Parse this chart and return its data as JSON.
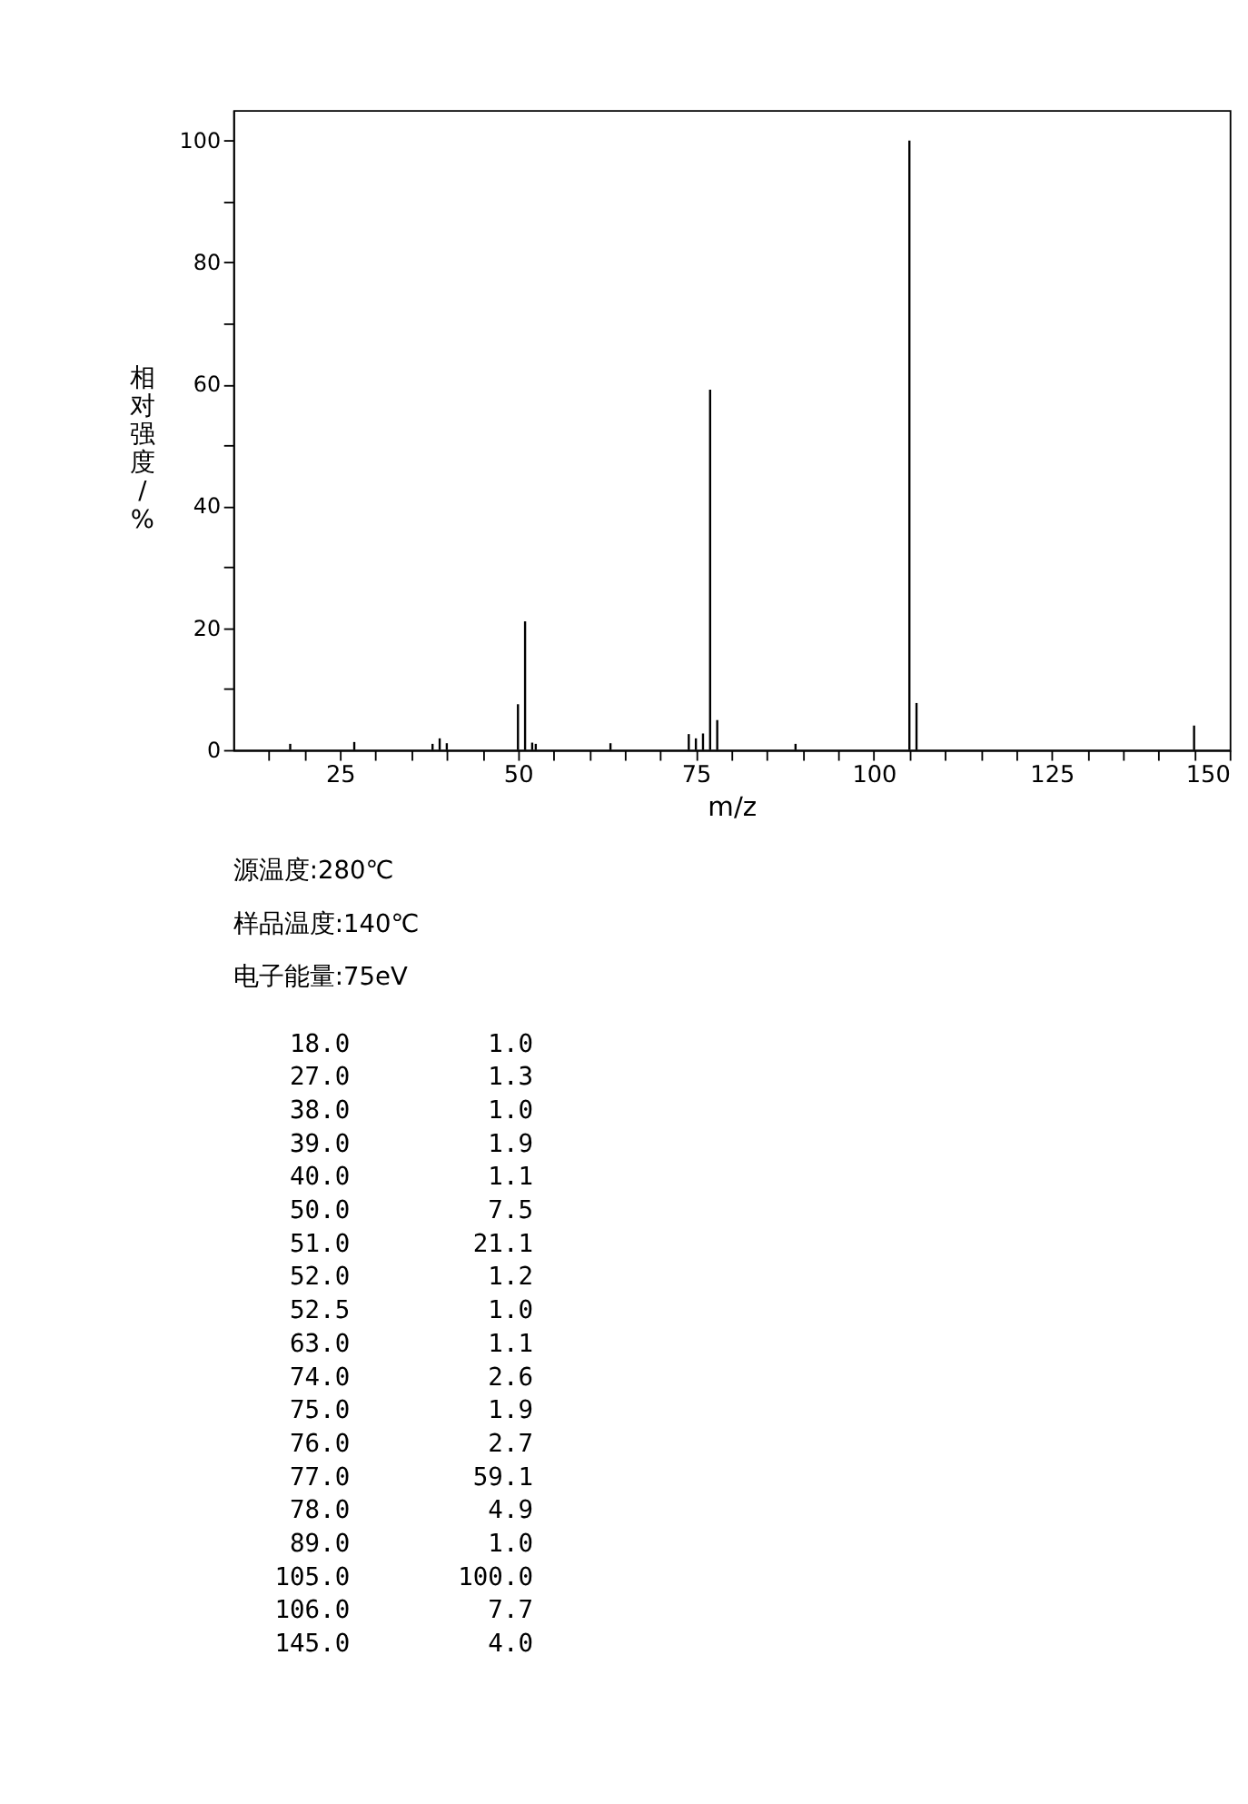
{
  "chart_data": [
    {
      "type": "bar",
      "xlabel": "m/z",
      "ylabel": "相对强度/%",
      "x": [
        18.0,
        27.0,
        38.0,
        39.0,
        40.0,
        50.0,
        51.0,
        52.0,
        52.5,
        63.0,
        74.0,
        75.0,
        76.0,
        77.0,
        78.0,
        89.0,
        105.0,
        106.0,
        145.0
      ],
      "values": [
        1.0,
        1.3,
        1.0,
        1.9,
        1.1,
        7.5,
        21.1,
        1.2,
        1.0,
        1.1,
        2.6,
        1.9,
        2.7,
        59.1,
        4.9,
        1.0,
        100.0,
        7.7,
        4.0
      ],
      "color": "#000000",
      "xlim": [
        10,
        150
      ],
      "xticks": [
        {
          "value": 15,
          "label": null
        },
        {
          "value": 20,
          "label": null
        },
        25,
        {
          "value": 30,
          "label": null
        },
        {
          "value": 35,
          "label": null
        },
        {
          "value": 40,
          "label": null
        },
        {
          "value": 45,
          "label": null
        },
        50,
        {
          "value": 55,
          "label": null
        },
        {
          "value": 60,
          "label": null
        },
        {
          "value": 65,
          "label": null
        },
        {
          "value": 70,
          "label": null
        },
        75,
        {
          "value": 80,
          "label": null
        },
        {
          "value": 85,
          "label": null
        },
        {
          "value": 90,
          "label": null
        },
        {
          "value": 95,
          "label": null
        },
        100,
        {
          "value": 105,
          "label": null
        },
        {
          "value": 110,
          "label": null
        },
        {
          "value": 115,
          "label": null
        },
        {
          "value": 120,
          "label": null
        },
        125,
        {
          "value": 130,
          "label": null
        },
        {
          "value": 135,
          "label": null
        },
        {
          "value": 140,
          "label": null
        },
        {
          "value": 145,
          "label": null
        },
        150
      ],
      "ylim": [
        0,
        105
      ],
      "yticks": [
        0,
        {
          "value": 10,
          "label": null
        },
        20,
        {
          "value": 30,
          "label": null
        },
        40,
        {
          "value": 50,
          "label": null
        },
        60,
        {
          "value": 70,
          "label": null
        },
        80,
        {
          "value": 90,
          "label": null
        },
        100
      ],
      "annotations": [
        "源温度:280℃",
        "样品温度:140℃",
        "电子能量:75eV"
      ]
    },
    {
      "type": "other",
      "categories": [
        "18.0",
        "27.0",
        "38.0",
        "39.0",
        "40.0",
        "50.0",
        "51.0",
        "52.0",
        "52.5",
        "63.0",
        "74.0",
        "75.0",
        "76.0",
        "77.0",
        "78.0",
        "89.0",
        "105.0",
        "106.0",
        "145.0"
      ],
      "values": [
        1.0,
        1.3,
        1.0,
        1.9,
        1.1,
        7.5,
        21.1,
        1.2,
        1.0,
        1.1,
        2.6,
        1.9,
        2.7,
        59.1,
        4.9,
        1.0,
        100.0,
        7.7,
        4.0
      ],
      "value_labels": [
        "1.0",
        "1.3",
        "1.0",
        "1.9",
        "1.1",
        "7.5",
        "21.1",
        "1.2",
        "1.0",
        "1.1",
        "2.6",
        "1.9",
        "2.7",
        "59.1",
        "4.9",
        "1.0",
        "100.0",
        "7.7",
        "4.0"
      ]
    }
  ]
}
